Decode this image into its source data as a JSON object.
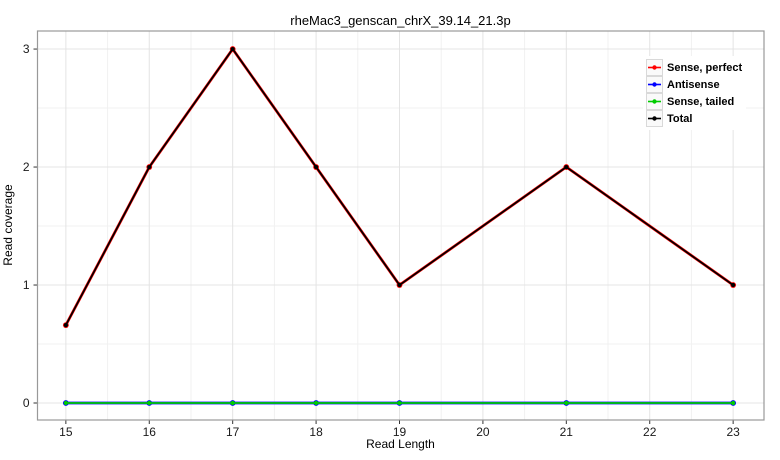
{
  "chart_data": {
    "type": "line",
    "title": "rheMac3_genscan_chrX_39.14_21.3p",
    "xlabel": "Read Length",
    "ylabel": "Read coverage",
    "x": [
      15,
      16,
      17,
      18,
      19,
      21,
      23
    ],
    "series": [
      {
        "name": "Sense, perfect",
        "color": "#ff0000",
        "values": [
          0.66,
          2,
          3,
          2,
          1,
          2,
          1
        ]
      },
      {
        "name": "Antisense",
        "color": "#0000ff",
        "values": [
          0,
          0,
          0,
          0,
          0,
          0,
          0
        ]
      },
      {
        "name": "Sense, tailed",
        "color": "#00cc00",
        "values": [
          0,
          0,
          0,
          0,
          0,
          0,
          0
        ]
      },
      {
        "name": "Total",
        "color": "#000000",
        "values": [
          0.66,
          2,
          3,
          2,
          1,
          2,
          1
        ]
      }
    ],
    "xticks": [
      15,
      16,
      17,
      18,
      19,
      20,
      21,
      22,
      23
    ],
    "yticks": [
      0,
      1,
      2,
      3
    ],
    "xlim": [
      14.66,
      23.37
    ],
    "ylim": [
      -0.144,
      3.153
    ],
    "grid": true,
    "legend_position": "top-right",
    "colors": {
      "grid_major": "#e4e4e4",
      "grid_minor": "#f1f1f1",
      "panel_border": "#999999",
      "tick": "#333333",
      "tick_label": "#1a1a1a",
      "background": "#ffffff"
    }
  }
}
